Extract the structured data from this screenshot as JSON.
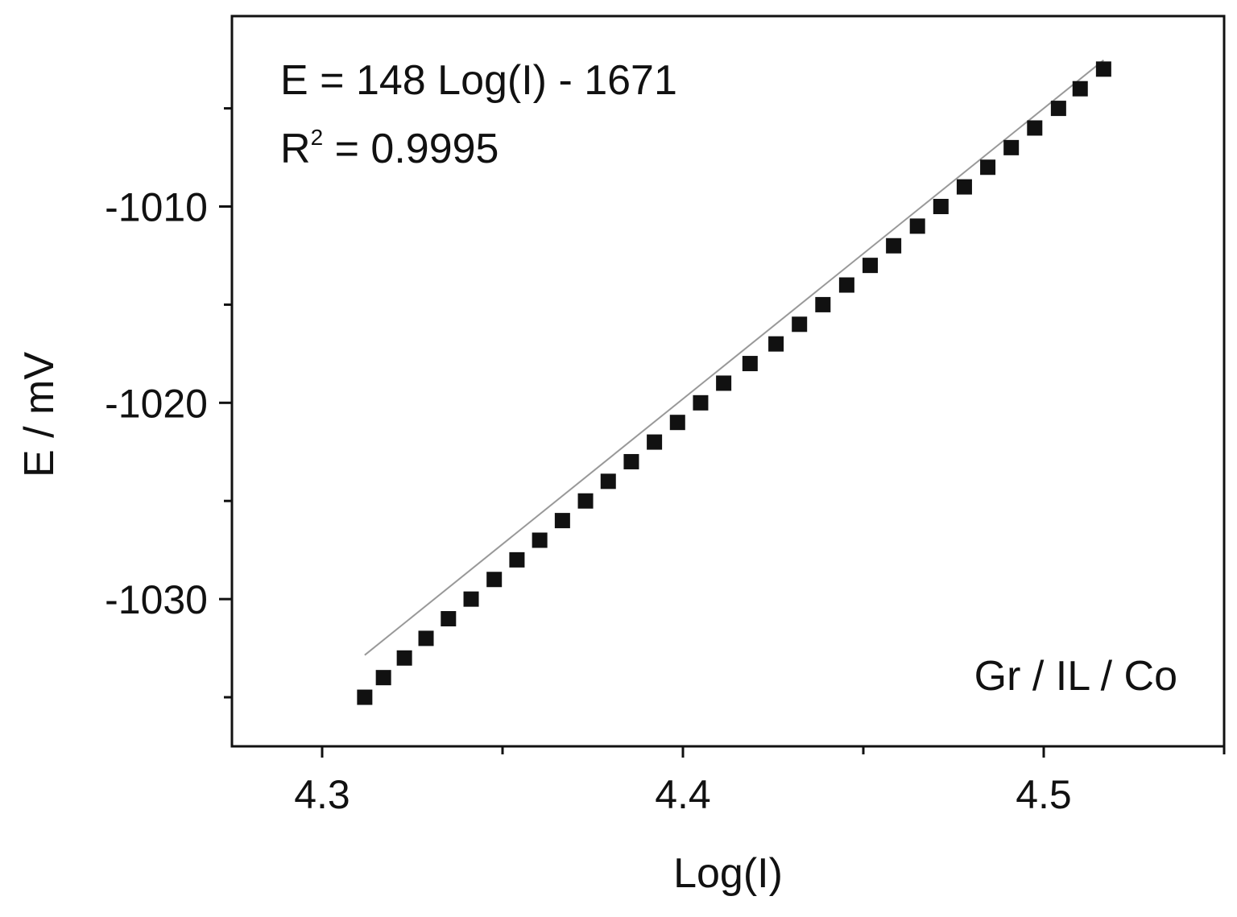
{
  "chart_data": {
    "type": "scatter",
    "xlabel": "Log(I)",
    "ylabel": "E / mV",
    "xlim": [
      4.275,
      4.55
    ],
    "ylim": [
      -1037.5,
      -1000.3
    ],
    "x_ticks": [
      "4.3",
      "4.4",
      "4.5"
    ],
    "y_ticks": [
      "-1010",
      "-1020",
      "-1030"
    ],
    "x_tick_values": [
      4.3,
      4.4,
      4.5
    ],
    "x_minor_tick_values": [
      4.35,
      4.45,
      4.55
    ],
    "y_tick_values": [
      -1010,
      -1020,
      -1030
    ],
    "y_minor_tick_values": [
      -1005,
      -1015,
      -1025,
      -1035
    ],
    "grid": false,
    "annotations": {
      "equation": "E = 148 Log(I) - 1671",
      "r2_prefix": "R",
      "r2_superscript": "2",
      "r2_value": " = 0.9995",
      "label": "Gr / IL / Co"
    },
    "fit_line": {
      "slope": 148,
      "intercept": -1671,
      "x_range": [
        4.3118,
        4.5166
      ]
    },
    "series": [
      {
        "marker": "square",
        "color": "#111111",
        "x": [
          4.3118,
          4.317,
          4.3228,
          4.3288,
          4.335,
          4.3413,
          4.3477,
          4.354,
          4.3603,
          4.3666,
          4.373,
          4.3793,
          4.3857,
          4.3921,
          4.3985,
          4.4049,
          4.4113,
          4.4186,
          4.4258,
          4.4323,
          4.4388,
          4.4454,
          4.4519,
          4.4584,
          4.465,
          4.4715,
          4.478,
          4.4845,
          4.491,
          4.4975,
          4.5041,
          4.5101,
          4.5166
        ],
        "y": [
          -1035,
          -1034,
          -1033,
          -1032,
          -1031,
          -1030,
          -1029,
          -1028,
          -1027,
          -1026,
          -1025,
          -1024,
          -1023,
          -1022,
          -1021,
          -1020,
          -1019,
          -1018,
          -1017,
          -1016,
          -1015,
          -1014,
          -1013,
          -1012,
          -1011,
          -1010,
          -1009,
          -1008,
          -1007,
          -1006,
          -1005,
          -1004,
          -1003
        ]
      }
    ]
  }
}
